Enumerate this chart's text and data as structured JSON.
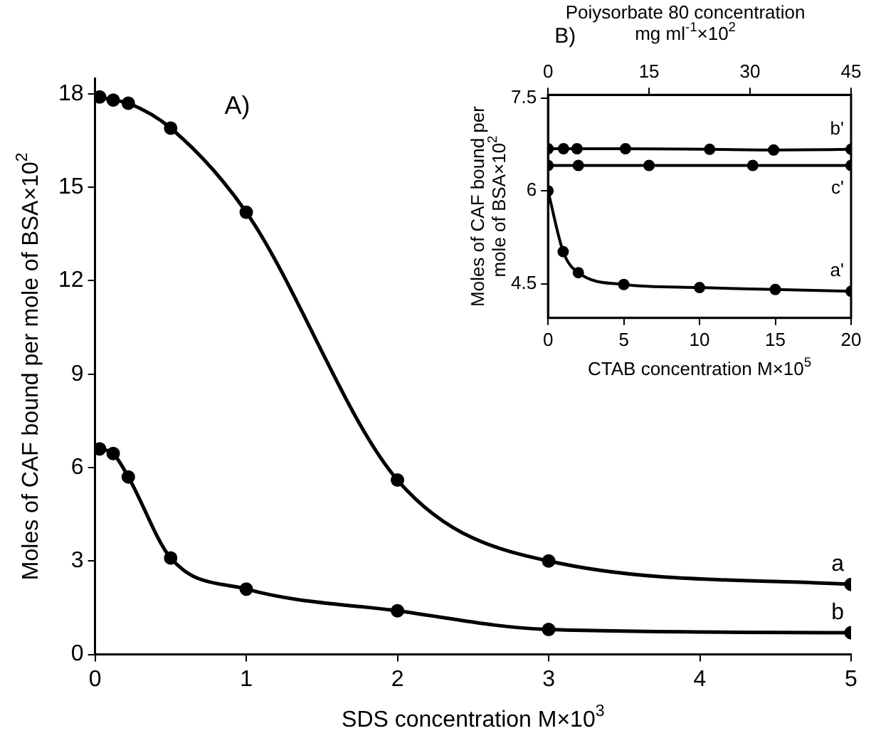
{
  "chart_data": [
    {
      "type": "line",
      "title": "A)",
      "xlabel": "SDS concentration M×10$^{3}$",
      "ylabel": "Moles of CAF bound per mole of BSA×10$^{2}$",
      "xlim": [
        0,
        5
      ],
      "xticks": [
        0,
        1,
        2,
        3,
        4,
        5
      ],
      "ylim": [
        0,
        18.5
      ],
      "yticks": [
        0,
        3,
        6,
        9,
        12,
        15,
        18
      ],
      "grid": false,
      "legend": false,
      "marker": "circle",
      "line_style": "solid",
      "series": [
        {
          "name": "a",
          "color": "#000000",
          "x": [
            0.03,
            0.12,
            0.22,
            0.5,
            1,
            2,
            3,
            5
          ],
          "values": [
            17.9,
            17.8,
            17.7,
            16.9,
            14.2,
            5.6,
            3.0,
            2.25
          ]
        },
        {
          "name": "b",
          "color": "#000000",
          "x": [
            0.03,
            0.12,
            0.22,
            0.5,
            1,
            2,
            3,
            5
          ],
          "values": [
            6.6,
            6.45,
            5.7,
            3.1,
            2.1,
            1.4,
            0.8,
            0.7
          ]
        }
      ]
    },
    {
      "type": "line",
      "title": "B)",
      "xlabel": "CTAB concentration M×10$^{5}$",
      "x2label": "Poiysorbate 80 concentration mg ml$^{-1}$×10$^{2}$",
      "ylabel": "Moles of CAF bound per mole of BSA×10$^{2}$",
      "xlim": [
        0,
        20
      ],
      "xticks": [
        0,
        5,
        10,
        15,
        20
      ],
      "x2lim": [
        0,
        45
      ],
      "x2ticks": [
        0,
        15,
        30,
        45
      ],
      "ylim": [
        3.95,
        7.55
      ],
      "yticks": [
        4.5,
        6.0,
        7.5
      ],
      "grid": false,
      "legend": false,
      "marker": "circle",
      "line_style": "solid",
      "series": [
        {
          "name": "b'",
          "color": "#000000",
          "axis": "x2",
          "x": [
            0,
            2.3,
            4.3,
            11.5,
            24,
            33.5,
            45
          ],
          "values": [
            6.68,
            6.68,
            6.68,
            6.68,
            6.67,
            6.66,
            6.67
          ]
        },
        {
          "name": "c'",
          "color": "#000000",
          "axis": "x2",
          "x": [
            0,
            4.5,
            15,
            30.4,
            45
          ],
          "values": [
            6.41,
            6.41,
            6.41,
            6.41,
            6.41
          ]
        },
        {
          "name": "a'",
          "color": "#000000",
          "x": [
            0,
            1,
            2,
            5,
            10,
            15,
            20
          ],
          "values": [
            6.0,
            5.02,
            4.68,
            4.49,
            4.44,
            4.41,
            4.38
          ]
        }
      ]
    }
  ]
}
